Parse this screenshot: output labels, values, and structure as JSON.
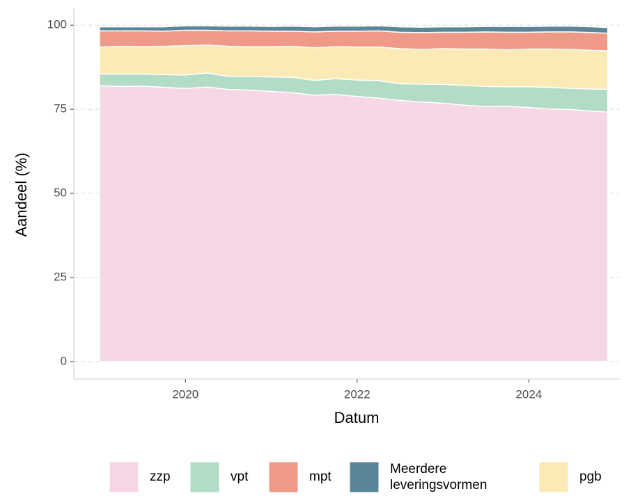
{
  "chart_data": {
    "type": "stacked_area",
    "x_label": "Datum",
    "y_label": "Aandeel (%)",
    "x": [
      2019.0,
      2019.25,
      2019.5,
      2019.75,
      2020.0,
      2020.25,
      2020.5,
      2020.75,
      2021.0,
      2021.25,
      2021.5,
      2021.75,
      2022.0,
      2022.25,
      2022.5,
      2022.75,
      2023.0,
      2023.25,
      2023.5,
      2023.75,
      2024.0,
      2024.25,
      2024.5,
      2024.75,
      2024.92
    ],
    "series": [
      {
        "name": "zzp",
        "color": "#f7d6e6",
        "values": [
          82.0,
          81.8,
          81.9,
          81.5,
          81.2,
          81.6,
          80.9,
          80.7,
          80.3,
          79.9,
          79.2,
          79.4,
          78.8,
          78.3,
          77.6,
          77.2,
          76.8,
          76.2,
          75.8,
          75.9,
          75.5,
          75.1,
          74.9,
          74.4,
          74.2
        ]
      },
      {
        "name": "vpt",
        "color": "#b2dcc5",
        "values": [
          3.5,
          3.7,
          3.6,
          3.8,
          4.0,
          4.2,
          3.9,
          4.1,
          4.3,
          4.6,
          4.4,
          4.7,
          4.9,
          5.2,
          5.0,
          5.3,
          5.6,
          5.9,
          6.0,
          5.8,
          6.2,
          6.4,
          6.3,
          6.6,
          6.8
        ]
      },
      {
        "name": "mpt",
        "color": "#ee9a87",
        "values": [
          4.8,
          4.6,
          4.7,
          4.5,
          4.6,
          4.4,
          4.6,
          4.7,
          4.6,
          4.5,
          4.7,
          4.6,
          4.7,
          4.8,
          4.9,
          5.0,
          4.9,
          5.0,
          5.1,
          5.2,
          5.0,
          5.1,
          5.2,
          5.3,
          5.2
        ]
      },
      {
        "name": "Meerdere\nleveringsvormen",
        "color": "#5b8599",
        "values": [
          1.2,
          1.2,
          1.2,
          1.3,
          1.3,
          1.3,
          1.4,
          1.4,
          1.4,
          1.5,
          1.5,
          1.5,
          1.5,
          1.5,
          1.6,
          1.6,
          1.6,
          1.6,
          1.6,
          1.7,
          1.7,
          1.7,
          1.7,
          1.7,
          1.7
        ]
      },
      {
        "name": "pgb",
        "color": "#fbeab5",
        "values": [
          8.0,
          8.2,
          8.1,
          8.4,
          8.7,
          8.3,
          8.9,
          8.8,
          9.0,
          9.2,
          9.7,
          9.5,
          9.8,
          10.0,
          10.4,
          10.3,
          10.6,
          10.8,
          11.1,
          11.0,
          11.2,
          11.4,
          11.6,
          11.5,
          11.4
        ]
      }
    ],
    "stack_order": [
      0,
      1,
      4,
      2,
      3
    ],
    "xlim": [
      2018.7,
      2025.06
    ],
    "xticks": [
      2020,
      2022,
      2024
    ],
    "ylim": [
      -5.2,
      105
    ],
    "yticks": [
      0,
      25,
      50,
      75,
      100
    ],
    "grid": true,
    "legend": "bottom"
  }
}
